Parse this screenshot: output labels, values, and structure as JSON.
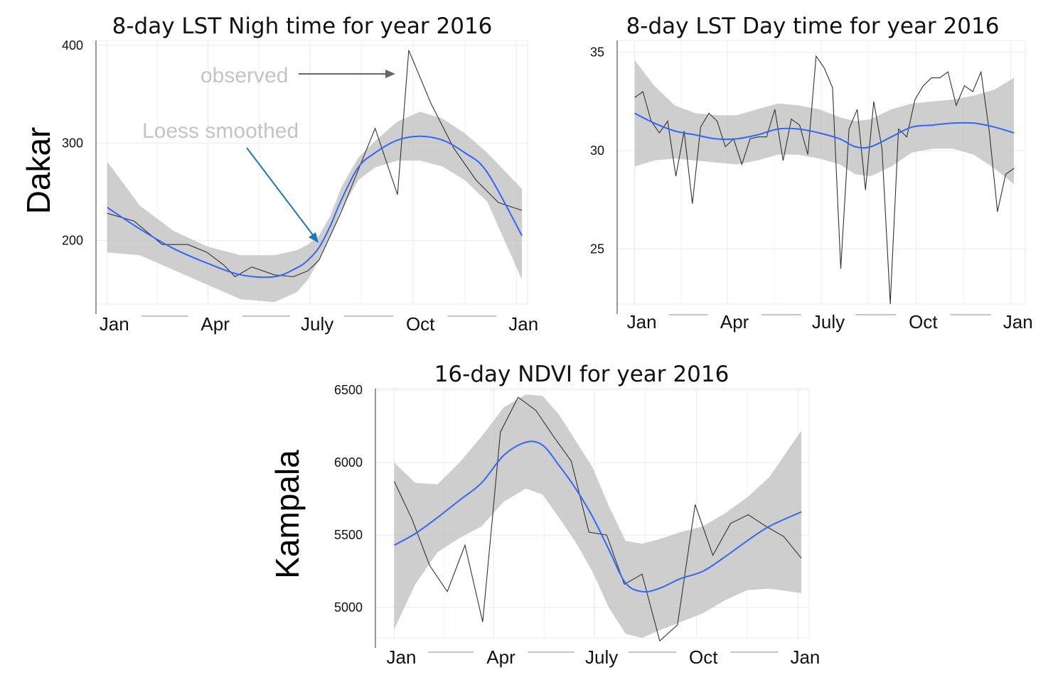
{
  "row_labels": {
    "dakar": "Dakar",
    "kampala": "Kampala"
  },
  "annotations": {
    "observed": "observed",
    "loess": "Loess smoothed"
  },
  "colors": {
    "observed": "#333333",
    "smoothed": "#3366ff",
    "band": "#bebebe",
    "annotation_text": "#c4c4c4",
    "observed_arrow": "#666666",
    "loess_arrow": "#1f78b4"
  },
  "chart_data": [
    {
      "id": "dakar-night",
      "type": "line",
      "title": "8-day LST Nigh time for year 2016",
      "x_tick_labels": [
        "Jan",
        "Apr",
        "July",
        "Oct",
        "Jan"
      ],
      "x_tick_positions": [
        1,
        91,
        182,
        274,
        366
      ],
      "xlim": [
        -9,
        376
      ],
      "ylim": [
        135,
        405
      ],
      "y_ticks": [
        200,
        300,
        400
      ],
      "grid": true,
      "series": [
        {
          "kind": "observed",
          "x": [
            1,
            25,
            50,
            73,
            90,
            105,
            115,
            130,
            150,
            167,
            180,
            190,
            210,
            240,
            260,
            270,
            290,
            310,
            330,
            350,
            371
          ],
          "y": [
            228,
            220,
            196,
            196,
            188,
            175,
            163,
            173,
            165,
            163,
            169,
            180,
            230,
            315,
            247,
            395,
            340,
            295,
            262,
            239,
            231
          ]
        },
        {
          "kind": "smoothed",
          "x": [
            1,
            30,
            60,
            90,
            120,
            150,
            170,
            180,
            190,
            200,
            210,
            225,
            240,
            260,
            280,
            300,
            320,
            340,
            371
          ],
          "y": [
            234,
            212,
            192,
            177,
            165,
            163,
            172,
            180,
            193,
            215,
            242,
            275,
            290,
            303,
            307,
            303,
            290,
            270,
            205
          ]
        },
        {
          "kind": "band_upper",
          "x": [
            1,
            30,
            60,
            90,
            120,
            150,
            170,
            180,
            190,
            200,
            210,
            225,
            240,
            260,
            280,
            300,
            320,
            340,
            371
          ],
          "y": [
            281,
            236,
            210,
            194,
            185,
            185,
            190,
            196,
            205,
            225,
            255,
            285,
            302,
            322,
            332,
            325,
            310,
            290,
            253
          ]
        },
        {
          "kind": "band_lower",
          "x": [
            1,
            30,
            60,
            90,
            120,
            150,
            170,
            180,
            190,
            200,
            210,
            225,
            240,
            260,
            280,
            300,
            320,
            340,
            371
          ],
          "y": [
            188,
            185,
            170,
            155,
            140,
            137,
            147,
            160,
            180,
            205,
            232,
            262,
            275,
            282,
            282,
            276,
            262,
            240,
            160
          ]
        }
      ]
    },
    {
      "id": "dakar-day",
      "type": "line",
      "title": "8-day LST Day time for year 2016",
      "x_tick_labels": [
        "Jan",
        "Apr",
        "July",
        "Oct",
        "Jan"
      ],
      "x_tick_positions": [
        1,
        91,
        182,
        274,
        366
      ],
      "xlim": [
        -16,
        380
      ],
      "ylim": [
        22.2,
        35.6
      ],
      "y_ticks": [
        25,
        30,
        35
      ],
      "grid": true,
      "series": [
        {
          "kind": "observed",
          "x": [
            1,
            9,
            17,
            25,
            33,
            41,
            49,
            57,
            65,
            73,
            81,
            89,
            97,
            105,
            113,
            121,
            129,
            137,
            145,
            153,
            161,
            169,
            177,
            185,
            193,
            201,
            209,
            217,
            225,
            233,
            241,
            249,
            257,
            265,
            273,
            281,
            289,
            297,
            305,
            313,
            321,
            329,
            337,
            345,
            353,
            361,
            369
          ],
          "y": [
            32.7,
            33.0,
            31.5,
            30.9,
            31.5,
            28.7,
            31.0,
            27.3,
            31.2,
            31.9,
            31.5,
            30.2,
            30.6,
            29.3,
            30.6,
            30.7,
            30.7,
            32.1,
            29.5,
            31.6,
            31.3,
            29.8,
            34.8,
            34.2,
            33.2,
            24.0,
            31.1,
            32.1,
            28.0,
            32.5,
            30.1,
            22.2,
            31.1,
            30.7,
            32.6,
            33.3,
            33.7,
            33.7,
            34.0,
            32.3,
            33.3,
            33.0,
            34.0,
            31.0,
            26.9,
            28.8,
            29.1
          ]
        },
        {
          "kind": "smoothed",
          "x": [
            1,
            20,
            40,
            60,
            80,
            100,
            120,
            140,
            160,
            180,
            200,
            215,
            230,
            250,
            270,
            290,
            310,
            330,
            350,
            369
          ],
          "y": [
            31.9,
            31.4,
            31.0,
            30.8,
            30.6,
            30.6,
            30.8,
            31.1,
            31.1,
            30.9,
            30.6,
            30.2,
            30.2,
            30.7,
            31.2,
            31.3,
            31.4,
            31.4,
            31.2,
            30.9
          ]
        },
        {
          "kind": "band_upper",
          "x": [
            1,
            20,
            40,
            60,
            80,
            100,
            120,
            140,
            160,
            180,
            200,
            215,
            230,
            250,
            270,
            290,
            310,
            330,
            350,
            369
          ],
          "y": [
            34.6,
            33.3,
            32.3,
            31.9,
            31.8,
            31.8,
            32.1,
            32.4,
            32.3,
            32.1,
            31.7,
            31.5,
            31.6,
            32.1,
            32.4,
            32.5,
            32.6,
            32.8,
            33.1,
            33.7
          ]
        },
        {
          "kind": "band_lower",
          "x": [
            1,
            20,
            40,
            60,
            80,
            100,
            120,
            140,
            160,
            180,
            200,
            215,
            230,
            250,
            270,
            290,
            310,
            330,
            350,
            369
          ],
          "y": [
            29.2,
            29.5,
            29.6,
            29.5,
            29.4,
            29.3,
            29.5,
            29.8,
            29.8,
            29.6,
            29.3,
            28.8,
            28.7,
            29.2,
            29.9,
            30.1,
            30.1,
            29.8,
            29.1,
            28.3
          ]
        }
      ]
    },
    {
      "id": "kampala-ndvi",
      "type": "line",
      "title": "16-day NDVI for year 2016",
      "x_tick_labels": [
        "Jan",
        "Apr",
        "July",
        "Oct",
        "Jan"
      ],
      "x_tick_positions": [
        1,
        91,
        182,
        274,
        366
      ],
      "xlim": [
        -16,
        376
      ],
      "ylim": [
        4790,
        6510
      ],
      "y_ticks": [
        5000,
        5500,
        6000,
        6500
      ],
      "grid": true,
      "series": [
        {
          "kind": "observed",
          "x": [
            1,
            17,
            33,
            49,
            65,
            81,
            97,
            113,
            129,
            145,
            161,
            177,
            193,
            209,
            225,
            241,
            257,
            273,
            289,
            305,
            321,
            337,
            353,
            369
          ],
          "y": [
            5870,
            5610,
            5290,
            5110,
            5430,
            4900,
            6210,
            6450,
            6360,
            6180,
            6010,
            5520,
            5500,
            5160,
            5230,
            4770,
            4880,
            5710,
            5360,
            5580,
            5640,
            5560,
            5490,
            5340
          ]
        },
        {
          "kind": "smoothed",
          "x": [
            1,
            20,
            40,
            60,
            80,
            100,
            120,
            135,
            150,
            165,
            180,
            195,
            210,
            225,
            240,
            260,
            280,
            300,
            320,
            340,
            369
          ],
          "y": [
            5430,
            5510,
            5620,
            5740,
            5860,
            6050,
            6140,
            6120,
            5980,
            5820,
            5630,
            5400,
            5170,
            5110,
            5130,
            5200,
            5250,
            5350,
            5460,
            5560,
            5660
          ]
        },
        {
          "kind": "band_upper",
          "x": [
            1,
            20,
            40,
            60,
            80,
            100,
            120,
            135,
            150,
            165,
            180,
            195,
            210,
            225,
            240,
            260,
            280,
            300,
            320,
            340,
            369
          ],
          "y": [
            6000,
            5860,
            5850,
            6000,
            6180,
            6380,
            6470,
            6460,
            6330,
            6150,
            5970,
            5700,
            5460,
            5440,
            5470,
            5520,
            5560,
            5650,
            5760,
            5900,
            6220
          ]
        },
        {
          "kind": "band_lower",
          "x": [
            1,
            20,
            40,
            60,
            80,
            100,
            120,
            135,
            150,
            165,
            180,
            195,
            210,
            225,
            240,
            260,
            280,
            300,
            320,
            340,
            369
          ],
          "y": [
            4850,
            5160,
            5380,
            5480,
            5560,
            5730,
            5820,
            5780,
            5620,
            5450,
            5250,
            5000,
            4820,
            4790,
            4840,
            4900,
            4960,
            5050,
            5120,
            5130,
            5100
          ]
        }
      ]
    }
  ]
}
